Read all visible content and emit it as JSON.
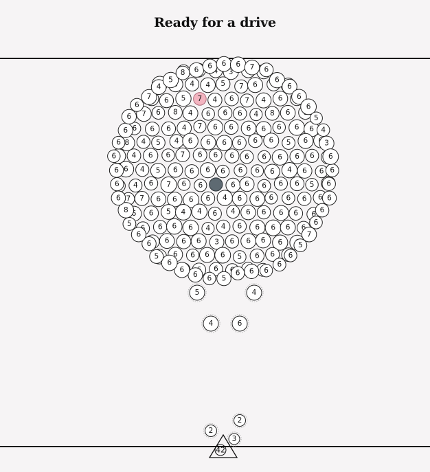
{
  "title": "Ready for a drive",
  "colors": {
    "background": "#f6f4f5",
    "rule": "#111111",
    "ball_fill": "#ffffff",
    "ball_stroke": "#222222",
    "special_ball": "#5e6a72",
    "pink_ball": "#f3b4c0"
  },
  "launcher": {
    "icon": "triangle-launcher-icon",
    "label": "42"
  },
  "queue_balls": [
    "2",
    "2",
    "3"
  ],
  "loose_balls": [
    "5",
    "4",
    "4",
    "6"
  ],
  "cluster_labels": [
    "5",
    "3",
    "4",
    "3",
    "6",
    "4",
    "8",
    "3",
    "4",
    "4",
    "5",
    "7",
    "6",
    "3",
    "8",
    "4",
    "6",
    "5",
    "7",
    "4",
    "6",
    "7",
    "4",
    "6",
    "4",
    "7",
    "6",
    "8",
    "4",
    "6",
    "6",
    "6",
    "4",
    "8",
    "6",
    "6",
    "6",
    "6",
    "6",
    "4",
    "7",
    "6",
    "6",
    "6",
    "6",
    "6",
    "6",
    "6",
    "8",
    "4",
    "5",
    "4",
    "6",
    "6",
    "6",
    "6",
    "6",
    "6",
    "5",
    "6",
    "6",
    "6",
    "4",
    "6",
    "6",
    "7",
    "6",
    "6",
    "6",
    "6",
    "6",
    "6",
    "6",
    "6",
    "6",
    "6",
    "4",
    "5",
    "6",
    "6",
    "6",
    "6",
    "6",
    "6",
    "6",
    "4",
    "6",
    "6",
    "6",
    "4",
    "6",
    "7",
    "6",
    "6",
    "6",
    "6",
    "6",
    "6",
    "6",
    "6",
    "5",
    "4",
    "7",
    "7",
    "6",
    "6",
    "6",
    "6",
    "4",
    "6",
    "6",
    "6",
    "6",
    "6",
    "6",
    "6",
    "6",
    "5",
    "4",
    "4",
    "6",
    "4",
    "6",
    "6",
    "6",
    "6",
    "6",
    "6",
    "6",
    "6",
    "6",
    "4",
    "4",
    "6",
    "6",
    "6",
    "6",
    "6",
    "6",
    "6",
    "6",
    "6",
    "3",
    "6",
    "6",
    "6",
    "6",
    "6",
    "6",
    "6",
    "6",
    "6",
    "6",
    "5",
    "6",
    "6",
    "6",
    "6",
    "6",
    "6",
    "6",
    "6",
    "4",
    "6",
    "6",
    "6",
    "6",
    "6",
    "7",
    "5",
    "6",
    "6",
    "6",
    "6",
    "6",
    "5",
    "6",
    "6",
    "6",
    "6",
    "5",
    "6",
    "6",
    "5",
    "8",
    "6",
    "6",
    "6",
    "6",
    "6",
    "6",
    "6",
    "6",
    "7",
    "4",
    "5",
    "8",
    "6",
    "6",
    "6",
    "6",
    "7",
    "6",
    "6",
    "6",
    "6",
    "6",
    "5",
    "4",
    "3",
    "6",
    "6",
    "6",
    "6",
    "7",
    "5",
    "5",
    "8",
    "6",
    "6",
    "6",
    "7",
    "5",
    "5",
    "4",
    "3",
    "5",
    "3",
    "8",
    "6",
    "6",
    "7",
    "6",
    "5",
    "5",
    "4",
    "6",
    "5",
    "8",
    "4"
  ]
}
